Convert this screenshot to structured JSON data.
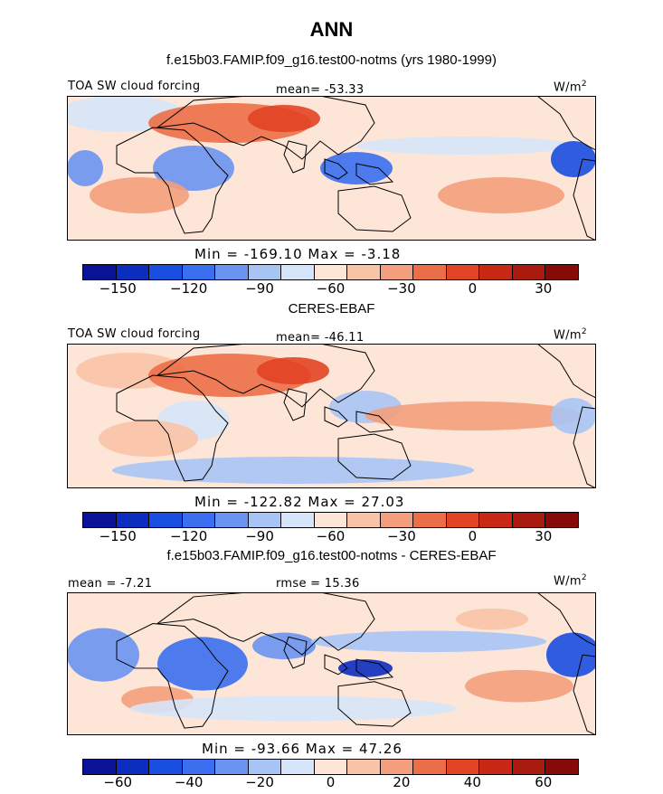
{
  "title": "ANN",
  "case": "f.e15b03.FAMIP.f09_g16.test00-notms (yrs 1980-1999)",
  "obs_name": "CERES-EBAF",
  "diff_title": "f.e15b03.FAMIP.f09_g16.test00-notms - CERES-EBAF",
  "colors": {
    "palette": [
      "#0a1296",
      "#0c2ebf",
      "#1a4ee0",
      "#3a6ff0",
      "#6b94f2",
      "#a8c4f5",
      "#d6e5f9",
      "#fde6d8",
      "#f9c3a8",
      "#f39e7c",
      "#ec6e48",
      "#e14424",
      "#c92814",
      "#a81a0d",
      "#850a08"
    ],
    "coast": "#000000"
  },
  "chart_data": [
    {
      "type": "heatmap",
      "panel": "model",
      "left_label": "TOA SW cloud forcing",
      "center_label": "mean= -53.33",
      "units_base": "W/m",
      "units_exp": "2",
      "minmax": "Min = -169.10 Max =  -3.18",
      "colorbar_ticks": [
        "-150",
        "-120",
        "-90",
        "-60",
        "-30",
        "0",
        "30"
      ],
      "colorbar_range": [
        -165,
        45
      ],
      "mean": -53.33,
      "min": -169.1,
      "max": -3.18
    },
    {
      "type": "heatmap",
      "panel": "observations",
      "left_label": "TOA SW cloud forcing",
      "center_label": "mean= -46.11",
      "units_base": "W/m",
      "units_exp": "2",
      "minmax": "Min = -122.82 Max =  27.03",
      "colorbar_ticks": [
        "-150",
        "-120",
        "-90",
        "-60",
        "-30",
        "0",
        "30"
      ],
      "colorbar_range": [
        -165,
        45
      ],
      "mean": -46.11,
      "min": -122.82,
      "max": 27.03
    },
    {
      "type": "heatmap",
      "panel": "difference",
      "left_label": "mean =  -7.21",
      "center_label": "rmse =  15.36",
      "units_base": "W/m",
      "units_exp": "2",
      "minmax": "Min = -93.66 Max =  47.26",
      "colorbar_ticks": [
        "-60",
        "-40",
        "-20",
        "0",
        "20",
        "40",
        "60"
      ],
      "colorbar_range": [
        -70,
        70
      ],
      "mean": -7.21,
      "rmse": 15.36,
      "min": -93.66,
      "max": 47.26
    }
  ]
}
